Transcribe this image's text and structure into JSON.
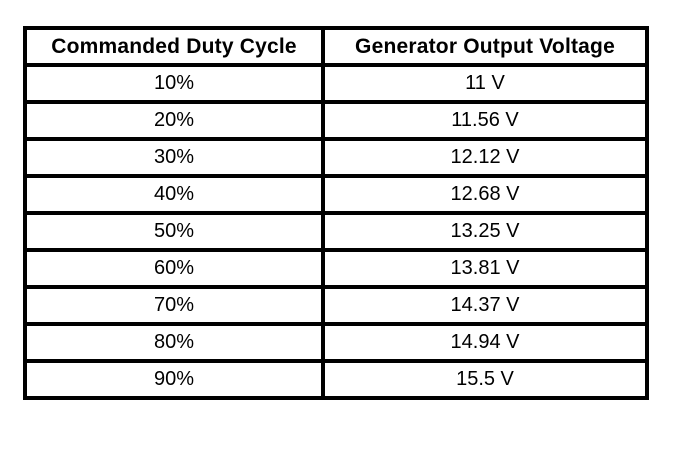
{
  "page": {
    "background_color": "#ffffff",
    "border_color": "#000000",
    "text_color": "#000000"
  },
  "chart_data": {
    "type": "table",
    "title": "",
    "columns": [
      "Commanded Duty Cycle",
      "Generator Output Voltage"
    ],
    "rows": [
      [
        "10%",
        "11 V"
      ],
      [
        "20%",
        "11.56 V"
      ],
      [
        "30%",
        "12.12 V"
      ],
      [
        "40%",
        "12.68 V"
      ],
      [
        "50%",
        "13.25 V"
      ],
      [
        "60%",
        "13.81 V"
      ],
      [
        "70%",
        "14.37 V"
      ],
      [
        "80%",
        "14.94 V"
      ],
      [
        "90%",
        "15.5 V"
      ]
    ],
    "series": [
      {
        "name": "Commanded Duty Cycle (%)",
        "values": [
          10,
          20,
          30,
          40,
          50,
          60,
          70,
          80,
          90
        ]
      },
      {
        "name": "Generator Output Voltage (V)",
        "values": [
          11,
          11.56,
          12.12,
          12.68,
          13.25,
          13.81,
          14.37,
          14.94,
          15.5
        ]
      }
    ],
    "layout": {
      "grid": "full-borders",
      "header_bold": true,
      "cell_alignment": "center"
    }
  }
}
